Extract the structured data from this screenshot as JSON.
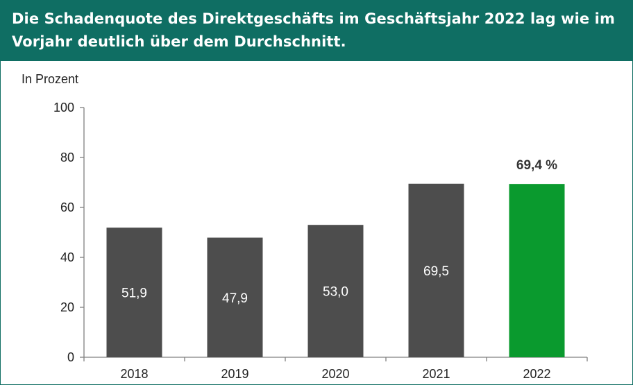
{
  "title": "Die Schadenquote des Direktgeschäfts im Geschäftsjahr 2022 lag wie im Vorjahr deutlich über dem Durchschnitt.",
  "unit_label": "In Prozent",
  "colors": {
    "header": "#0f6e63",
    "bar": "#4d4d4d",
    "highlight_bar": "#0a9a2e",
    "axis": "#808080"
  },
  "chart_data": {
    "type": "bar",
    "categories": [
      "2018",
      "2019",
      "2020",
      "2021",
      "2022"
    ],
    "values": [
      51.9,
      47.9,
      53.0,
      69.5,
      69.4
    ],
    "data_labels": [
      "51,9",
      "47,9",
      "53,0",
      "69,5",
      "69,4 %"
    ],
    "highlight_index": 4,
    "ylim": [
      0,
      100
    ],
    "yticks": [
      0,
      20,
      40,
      60,
      80,
      100
    ],
    "ylabel": "In Prozent",
    "grid": false,
    "legend": "none"
  }
}
